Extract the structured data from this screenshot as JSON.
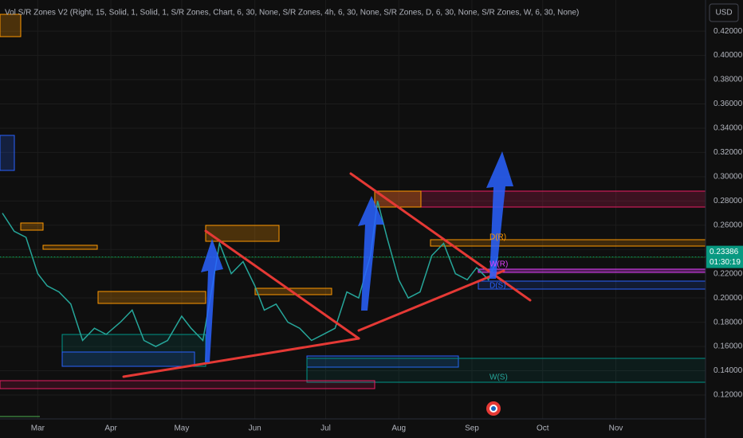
{
  "chart_data": {
    "type": "line",
    "title": "Vol S/R Zones V2 (Right, 15, Solid, 1, Solid, 1, S/R Zones, Chart, 6, 30, None, S/R Zones, 4h, 6, 30, None, S/R Zones, D, 6, 30, None, S/R Zones, W, 6, 30, None)",
    "currency": "USD",
    "x": [
      14,
      19,
      24,
      29,
      33,
      38,
      43,
      48,
      53,
      58,
      64,
      69,
      74,
      79,
      84,
      90,
      94,
      99,
      103,
      106,
      111,
      116,
      121,
      125,
      130,
      135,
      140,
      145,
      150,
      155,
      160,
      165,
      170,
      173,
      177,
      182,
      186,
      191,
      196,
      201,
      206,
      211,
      215,
      220,
      224
    ],
    "series": [
      {
        "color": "#26a69a",
        "values": [
          0.27,
          0.255,
          0.25,
          0.22,
          0.21,
          0.205,
          0.195,
          0.165,
          0.175,
          0.17,
          0.18,
          0.19,
          0.165,
          0.16,
          0.165,
          0.185,
          0.175,
          0.165,
          0.21,
          0.245,
          0.22,
          0.23,
          0.21,
          0.19,
          0.195,
          0.18,
          0.175,
          0.165,
          0.17,
          0.175,
          0.205,
          0.2,
          0.235,
          0.28,
          0.25,
          0.215,
          0.2,
          0.205,
          0.235,
          0.245,
          0.22,
          0.215,
          0.225,
          0.215,
          0.23386
        ]
      }
    ],
    "xlim": [
      13,
      312
    ],
    "xticks": [
      {
        "value": 29,
        "label": "Mar"
      },
      {
        "value": 60,
        "label": "Apr"
      },
      {
        "value": 90,
        "label": "May"
      },
      {
        "value": 121,
        "label": "Jun"
      },
      {
        "value": 151,
        "label": "Jul"
      },
      {
        "value": 182,
        "label": "Aug"
      },
      {
        "value": 213,
        "label": "Sep"
      },
      {
        "value": 243,
        "label": "Oct"
      },
      {
        "value": 274,
        "label": "Nov"
      }
    ],
    "ylim": [
      0.1003,
      0.4457
    ],
    "yticks": [
      {
        "value": 0.12,
        "label": "0.12000"
      },
      {
        "value": 0.14,
        "label": "0.14000"
      },
      {
        "value": 0.16,
        "label": "0.16000"
      },
      {
        "value": 0.18,
        "label": "0.18000"
      },
      {
        "value": 0.2,
        "label": "0.20000"
      },
      {
        "value": 0.22,
        "label": "0.22000"
      },
      {
        "value": 0.24,
        "label": "0.24000"
      },
      {
        "value": 0.26,
        "label": "0.26000"
      },
      {
        "value": 0.28,
        "label": "0.28000"
      },
      {
        "value": 0.3,
        "label": "0.30000"
      },
      {
        "value": 0.32,
        "label": "0.32000"
      },
      {
        "value": 0.34,
        "label": "0.34000"
      },
      {
        "value": 0.36,
        "label": "0.36000"
      },
      {
        "value": 0.38,
        "label": "0.38000"
      },
      {
        "value": 0.4,
        "label": "0.40000"
      },
      {
        "value": 0.42,
        "label": "0.42000"
      }
    ],
    "grid": true,
    "last_price": 0.23386,
    "countdown": "01:30:19",
    "zone_labels": [
      "D(R)",
      "W(R)",
      "D(S)",
      "W(S)"
    ]
  }
}
